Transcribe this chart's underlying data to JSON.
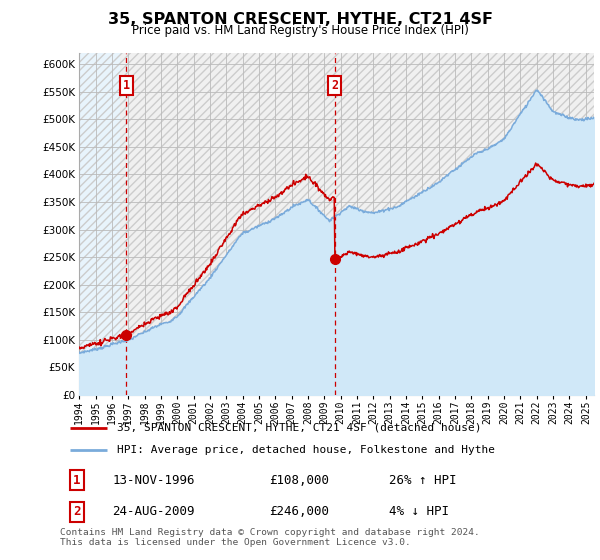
{
  "title": "35, SPANTON CRESCENT, HYTHE, CT21 4SF",
  "subtitle": "Price paid vs. HM Land Registry's House Price Index (HPI)",
  "legend_line1": "35, SPANTON CRESCENT, HYTHE, CT21 4SF (detached house)",
  "legend_line2": "HPI: Average price, detached house, Folkestone and Hythe",
  "annotation1_date": "13-NOV-1996",
  "annotation1_price": "£108,000",
  "annotation1_hpi": "26% ↑ HPI",
  "annotation2_date": "24-AUG-2009",
  "annotation2_price": "£246,000",
  "annotation2_hpi": "4% ↓ HPI",
  "footer": "Contains HM Land Registry data © Crown copyright and database right 2024.\nThis data is licensed under the Open Government Licence v3.0.",
  "hpi_color": "#7aabdb",
  "hpi_fill_color": "#d0e8f8",
  "price_color": "#cc0000",
  "dashed_color": "#cc0000",
  "annotation_box_color": "#cc0000",
  "hatch_color": "#dddddd",
  "grid_color": "#bbbbbb",
  "ylim": [
    0,
    620000
  ],
  "yticks": [
    0,
    50000,
    100000,
    150000,
    200000,
    250000,
    300000,
    350000,
    400000,
    450000,
    500000,
    550000,
    600000
  ],
  "sale1_x": 1996.88,
  "sale1_y": 108000,
  "sale2_x": 2009.63,
  "sale2_y": 246000,
  "xmin": 1994.0,
  "xmax": 2025.5
}
